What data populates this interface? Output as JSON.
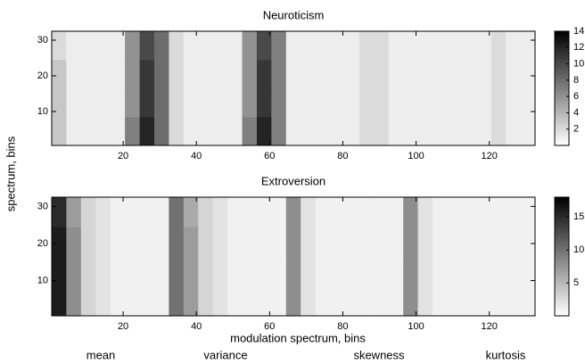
{
  "chart_data": [
    {
      "type": "heatmap",
      "title": "Neuroticism",
      "ylabel": "spectrum, bins",
      "x": [
        2.5,
        6.5,
        10.5,
        14.5,
        18.5,
        22.5,
        26.5,
        30.5,
        34.5,
        38.5,
        42.5,
        46.5,
        50.5,
        54.5,
        58.5,
        62.5,
        66.5,
        70.5,
        74.5,
        78.5,
        82.5,
        86.5,
        90.5,
        94.5,
        98.5,
        102.5,
        106.5,
        110.5,
        114.5,
        118.5,
        122.5,
        126.5,
        130.5
      ],
      "y": [
        4.5,
        12.5,
        20.5,
        28.5
      ],
      "z": [
        [
          3,
          1,
          1,
          1,
          1,
          7,
          12,
          8,
          2,
          1,
          1,
          1,
          1,
          7,
          12,
          7,
          1,
          1,
          1,
          1,
          1,
          2,
          2,
          1,
          1,
          1,
          1,
          1,
          1,
          1,
          2,
          1,
          1
        ],
        [
          3,
          1,
          1,
          1,
          1,
          6,
          11,
          8,
          2,
          1,
          1,
          1,
          1,
          6,
          11,
          7,
          1,
          1,
          1,
          1,
          1,
          2,
          2,
          1,
          1,
          1,
          1,
          1,
          1,
          1,
          2,
          1,
          1
        ],
        [
          3,
          1,
          1,
          1,
          1,
          6,
          11,
          8,
          2,
          1,
          1,
          1,
          1,
          6,
          11,
          7,
          1,
          1,
          1,
          1,
          1,
          2,
          2,
          1,
          1,
          1,
          1,
          1,
          1,
          1,
          2,
          1,
          1
        ],
        [
          2,
          1,
          1,
          1,
          1,
          6,
          10,
          8,
          2,
          1,
          1,
          1,
          1,
          6,
          10,
          7,
          1,
          1,
          1,
          1,
          1,
          2,
          2,
          1,
          1,
          1,
          1,
          1,
          1,
          1,
          2,
          1,
          1
        ]
      ],
      "xlim": [
        0.5,
        132.5
      ],
      "xticks": [
        20,
        40,
        60,
        80,
        100,
        120
      ],
      "ylim": [
        0.5,
        32.5
      ],
      "yticks": [
        10,
        20,
        30
      ],
      "zlim": [
        0,
        14
      ],
      "zticks": [
        2,
        4,
        6,
        8,
        10,
        12,
        14
      ]
    },
    {
      "type": "heatmap",
      "title": "Extroversion",
      "xlabel": "modulation spectrum, bins",
      "annotations": [
        "mean",
        "variance",
        "skewness",
        "kurtosis"
      ],
      "x": [
        2.5,
        6.5,
        10.5,
        14.5,
        18.5,
        22.5,
        26.5,
        30.5,
        34.5,
        38.5,
        42.5,
        46.5,
        50.5,
        54.5,
        58.5,
        62.5,
        66.5,
        70.5,
        74.5,
        78.5,
        82.5,
        86.5,
        90.5,
        94.5,
        98.5,
        102.5,
        106.5,
        110.5,
        114.5,
        118.5,
        122.5,
        126.5,
        130.5
      ],
      "y": [
        4.5,
        12.5,
        20.5,
        28.5
      ],
      "z": [
        [
          16,
          8,
          3,
          2,
          1,
          1,
          1,
          1,
          10,
          7,
          3,
          2,
          1,
          1,
          1,
          1,
          8,
          2,
          1,
          1,
          1,
          1,
          1,
          1,
          8,
          2,
          1,
          1,
          1,
          1,
          1,
          1,
          1
        ],
        [
          16,
          8,
          3,
          2,
          1,
          1,
          1,
          1,
          10,
          7,
          3,
          2,
          1,
          1,
          1,
          1,
          8,
          2,
          1,
          1,
          1,
          1,
          1,
          1,
          8,
          2,
          1,
          1,
          1,
          1,
          1,
          1,
          1
        ],
        [
          16,
          8,
          3,
          2,
          1,
          1,
          1,
          1,
          10,
          7,
          3,
          2,
          1,
          1,
          1,
          1,
          8,
          2,
          1,
          1,
          1,
          1,
          1,
          1,
          8,
          2,
          1,
          1,
          1,
          1,
          1,
          1,
          1
        ],
        [
          15,
          7,
          3,
          2,
          1,
          1,
          1,
          1,
          10,
          6,
          3,
          2,
          1,
          1,
          1,
          1,
          8,
          2,
          1,
          1,
          1,
          1,
          1,
          1,
          8,
          2,
          1,
          1,
          1,
          1,
          1,
          1,
          1
        ]
      ],
      "xlim": [
        0.5,
        132.5
      ],
      "xticks": [
        20,
        40,
        60,
        80,
        100,
        120
      ],
      "ylim": [
        0.5,
        32.5
      ],
      "yticks": [
        10,
        20,
        30
      ],
      "zlim": [
        0,
        18
      ],
      "zticks": [
        5,
        10,
        15
      ]
    }
  ]
}
